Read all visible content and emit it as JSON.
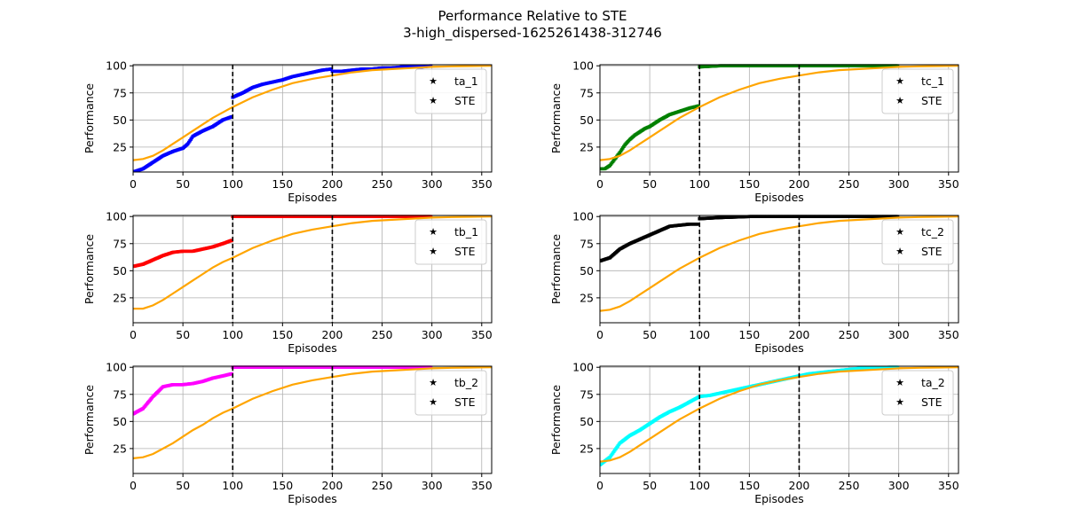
{
  "figure": {
    "title": "Performance Relative to STE",
    "subtitle": "3-high_dispersed-1625261438-312746"
  },
  "chart_data": [
    {
      "type": "scatter+line",
      "xlabel": "Episodes",
      "ylabel": "Performance",
      "xlim": [
        0,
        360
      ],
      "ylim": [
        2,
        101
      ],
      "xticks": [
        0,
        50,
        100,
        150,
        200,
        250,
        300,
        350
      ],
      "yticks": [
        25,
        50,
        75,
        100
      ],
      "grid": true,
      "legend": "top-right",
      "vlines": [
        100,
        200
      ],
      "series": [
        {
          "name": "ta_1",
          "kind": "points",
          "color": "#0000ff",
          "x": [
            0,
            10,
            20,
            30,
            40,
            50,
            55,
            60,
            70,
            80,
            90,
            99,
            100,
            110,
            120,
            130,
            140,
            150,
            160,
            170,
            180,
            190,
            199,
            200,
            210,
            220,
            230,
            240,
            250,
            260,
            270,
            280,
            290,
            299
          ],
          "y": [
            2,
            5,
            11,
            17,
            21,
            24,
            28,
            35,
            40,
            44,
            50,
            53,
            71,
            75,
            80,
            83,
            85,
            87,
            90,
            92,
            94,
            96,
            97,
            95,
            95,
            96,
            97,
            97,
            98,
            98,
            99,
            99,
            99,
            100
          ]
        },
        {
          "name": "STE",
          "kind": "line",
          "color": "#ffa500",
          "x": [
            0,
            10,
            20,
            30,
            40,
            50,
            60,
            70,
            80,
            90,
            100,
            120,
            140,
            160,
            180,
            200,
            220,
            240,
            260,
            280,
            300,
            320,
            340,
            360
          ],
          "y": [
            13,
            14,
            17,
            22,
            28,
            34,
            40,
            46,
            52,
            57,
            62,
            71,
            78,
            84,
            88,
            91,
            94,
            96,
            97,
            98,
            99,
            99.5,
            99.8,
            100
          ]
        }
      ]
    },
    {
      "type": "scatter+line",
      "xlabel": "Episodes",
      "ylabel": "Performance",
      "xlim": [
        0,
        360
      ],
      "ylim": [
        2,
        101
      ],
      "xticks": [
        0,
        50,
        100,
        150,
        200,
        250,
        300,
        350
      ],
      "yticks": [
        25,
        50,
        75,
        100
      ],
      "grid": true,
      "legend": "top-right",
      "vlines": [
        100,
        200
      ],
      "series": [
        {
          "name": "tc_1",
          "kind": "points",
          "color": "#008000",
          "x": [
            0,
            5,
            10,
            15,
            20,
            25,
            30,
            35,
            40,
            45,
            50,
            55,
            60,
            70,
            80,
            90,
            99,
            100,
            120,
            140,
            160,
            200,
            250,
            299
          ],
          "y": [
            5,
            5,
            8,
            14,
            20,
            27,
            32,
            36,
            39,
            42,
            44,
            47,
            50,
            55,
            58,
            61,
            63,
            99,
            100,
            100,
            100,
            100,
            100,
            100
          ]
        },
        {
          "name": "STE",
          "kind": "line",
          "color": "#ffa500",
          "x": [
            0,
            10,
            20,
            30,
            40,
            50,
            60,
            70,
            80,
            90,
            100,
            120,
            140,
            160,
            180,
            200,
            220,
            240,
            260,
            280,
            300,
            320,
            340,
            360
          ],
          "y": [
            13,
            14,
            17,
            22,
            28,
            34,
            40,
            46,
            52,
            57,
            62,
            71,
            78,
            84,
            88,
            91,
            94,
            96,
            97,
            98,
            99,
            99.5,
            99.8,
            100
          ]
        }
      ]
    },
    {
      "type": "scatter+line",
      "xlabel": "Episodes",
      "ylabel": "Performance",
      "xlim": [
        0,
        360
      ],
      "ylim": [
        2,
        101
      ],
      "xticks": [
        0,
        50,
        100,
        150,
        200,
        250,
        300,
        350
      ],
      "yticks": [
        25,
        50,
        75,
        100
      ],
      "grid": true,
      "legend": "top-right",
      "vlines": [
        100,
        200
      ],
      "series": [
        {
          "name": "tb_1",
          "kind": "points",
          "color": "#ff0000",
          "x": [
            0,
            10,
            20,
            30,
            40,
            50,
            60,
            70,
            80,
            90,
            99,
            100,
            120,
            150,
            200,
            250,
            299
          ],
          "y": [
            54,
            56,
            60,
            64,
            67,
            68,
            68,
            70,
            72,
            75,
            78,
            100,
            100,
            100,
            100,
            100,
            100
          ]
        },
        {
          "name": "STE",
          "kind": "line",
          "color": "#ffa500",
          "x": [
            0,
            10,
            20,
            30,
            40,
            50,
            60,
            70,
            80,
            90,
            100,
            120,
            140,
            160,
            180,
            200,
            220,
            240,
            260,
            280,
            300,
            320,
            340,
            360
          ],
          "y": [
            15,
            15,
            18,
            23,
            29,
            35,
            41,
            47,
            53,
            58,
            62,
            71,
            78,
            84,
            88,
            91,
            94,
            96,
            97,
            98,
            99,
            99.5,
            99.8,
            100
          ]
        }
      ]
    },
    {
      "type": "scatter+line",
      "xlabel": "Episodes",
      "ylabel": "Performance",
      "xlim": [
        0,
        360
      ],
      "ylim": [
        2,
        101
      ],
      "xticks": [
        0,
        50,
        100,
        150,
        200,
        250,
        300,
        350
      ],
      "yticks": [
        25,
        50,
        75,
        100
      ],
      "grid": true,
      "legend": "top-right",
      "vlines": [
        100,
        200
      ],
      "series": [
        {
          "name": "tc_2",
          "kind": "points",
          "color": "#000000",
          "x": [
            0,
            10,
            20,
            30,
            40,
            50,
            60,
            70,
            80,
            90,
            99,
            100,
            120,
            150,
            200,
            250,
            299
          ],
          "y": [
            59,
            62,
            70,
            75,
            79,
            83,
            87,
            91,
            92,
            93,
            93,
            98,
            99,
            100,
            100,
            100,
            100
          ]
        },
        {
          "name": "STE",
          "kind": "line",
          "color": "#ffa500",
          "x": [
            0,
            10,
            20,
            30,
            40,
            50,
            60,
            70,
            80,
            90,
            100,
            120,
            140,
            160,
            180,
            200,
            220,
            240,
            260,
            280,
            300,
            320,
            340,
            360
          ],
          "y": [
            13,
            14,
            17,
            22,
            28,
            34,
            40,
            46,
            52,
            57,
            62,
            71,
            78,
            84,
            88,
            91,
            94,
            96,
            97,
            98,
            99,
            99.5,
            99.8,
            100
          ]
        }
      ]
    },
    {
      "type": "scatter+line",
      "xlabel": "Episodes",
      "ylabel": "Performance",
      "xlim": [
        0,
        360
      ],
      "ylim": [
        2,
        101
      ],
      "xticks": [
        0,
        50,
        100,
        150,
        200,
        250,
        300,
        350
      ],
      "yticks": [
        25,
        50,
        75,
        100
      ],
      "grid": true,
      "legend": "top-right",
      "vlines": [
        100,
        200
      ],
      "series": [
        {
          "name": "tb_2",
          "kind": "points",
          "color": "#ff00ff",
          "x": [
            0,
            10,
            20,
            30,
            40,
            50,
            60,
            70,
            80,
            90,
            99,
            100,
            120,
            150,
            200,
            250,
            299
          ],
          "y": [
            57,
            62,
            73,
            82,
            84,
            84,
            85,
            87,
            90,
            92,
            94,
            100,
            100,
            100,
            100,
            100,
            100
          ]
        },
        {
          "name": "STE",
          "kind": "line",
          "color": "#ffa500",
          "x": [
            0,
            10,
            20,
            30,
            40,
            50,
            60,
            70,
            80,
            90,
            100,
            120,
            140,
            160,
            180,
            200,
            220,
            240,
            260,
            280,
            300,
            320,
            340,
            360
          ],
          "y": [
            16,
            17,
            20,
            25,
            30,
            36,
            42,
            47,
            53,
            58,
            62,
            71,
            78,
            84,
            88,
            91,
            94,
            96,
            97,
            98,
            99,
            99.5,
            99.8,
            100
          ]
        }
      ]
    },
    {
      "type": "scatter+line",
      "xlabel": "Episodes",
      "ylabel": "Performance",
      "xlim": [
        0,
        360
      ],
      "ylim": [
        2,
        101
      ],
      "xticks": [
        0,
        50,
        100,
        150,
        200,
        250,
        300,
        350
      ],
      "yticks": [
        25,
        50,
        75,
        100
      ],
      "grid": true,
      "legend": "top-right",
      "vlines": [
        100,
        200
      ],
      "series": [
        {
          "name": "ta_2",
          "kind": "points",
          "color": "#00ffff",
          "x": [
            0,
            10,
            20,
            30,
            40,
            50,
            60,
            70,
            80,
            90,
            100,
            110,
            120,
            130,
            140,
            150,
            160,
            170,
            180,
            190,
            200,
            210,
            220,
            230,
            240,
            250,
            260,
            270,
            280,
            290,
            299
          ],
          "y": [
            10,
            17,
            30,
            37,
            42,
            48,
            54,
            59,
            63,
            68,
            73,
            74,
            76,
            78,
            80,
            82,
            84,
            86,
            88,
            90,
            92,
            94,
            95,
            96,
            97,
            98,
            99,
            99,
            99,
            100,
            100
          ]
        },
        {
          "name": "STE",
          "kind": "line",
          "color": "#ffa500",
          "x": [
            0,
            10,
            20,
            30,
            40,
            50,
            60,
            70,
            80,
            90,
            100,
            120,
            140,
            160,
            180,
            200,
            220,
            240,
            260,
            280,
            300,
            320,
            340,
            360
          ],
          "y": [
            13,
            14,
            17,
            22,
            28,
            34,
            40,
            46,
            52,
            57,
            62,
            71,
            78,
            84,
            88,
            91,
            94,
            96,
            97,
            98,
            99,
            99.5,
            99.8,
            100
          ]
        }
      ]
    }
  ]
}
